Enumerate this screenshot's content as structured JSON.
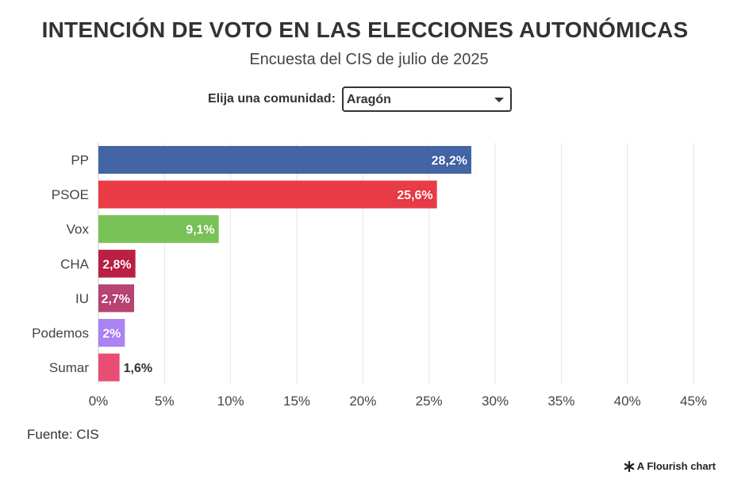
{
  "header": {
    "title": "INTENCIÓN DE VOTO EN LAS ELECCIONES AUTONÓMICAS",
    "subtitle": "Encuesta del CIS de julio de 2025"
  },
  "filter": {
    "label": "Elija una comunidad:",
    "selected": "Aragón"
  },
  "footer": {
    "source": "Fuente: CIS",
    "credit": "A Flourish chart",
    "credit_icon": "flourish-asterisk-icon"
  },
  "chart_data": {
    "type": "bar",
    "orientation": "horizontal",
    "categories": [
      "PP",
      "PSOE",
      "Vox",
      "CHA",
      "IU",
      "Podemos",
      "Sumar"
    ],
    "values": [
      28.2,
      25.6,
      9.1,
      2.8,
      2.7,
      2,
      1.6
    ],
    "value_labels": [
      "28,2%",
      "25,6%",
      "9,1%",
      "2,8%",
      "2,7%",
      "2%",
      "1,6%"
    ],
    "colors": [
      "#3a5da0",
      "#e8313d",
      "#71bf4f",
      "#b6143a",
      "#b33a6c",
      "#a77cf2",
      "#e8436b"
    ],
    "xlim": [
      0,
      45
    ],
    "xticks": [
      0,
      5,
      10,
      15,
      20,
      25,
      30,
      35,
      40,
      45
    ],
    "xtick_labels": [
      "0%",
      "5%",
      "10%",
      "15%",
      "20%",
      "25%",
      "30%",
      "35%",
      "40%",
      "45%"
    ],
    "grid": true,
    "xlabel": "",
    "ylabel": ""
  }
}
